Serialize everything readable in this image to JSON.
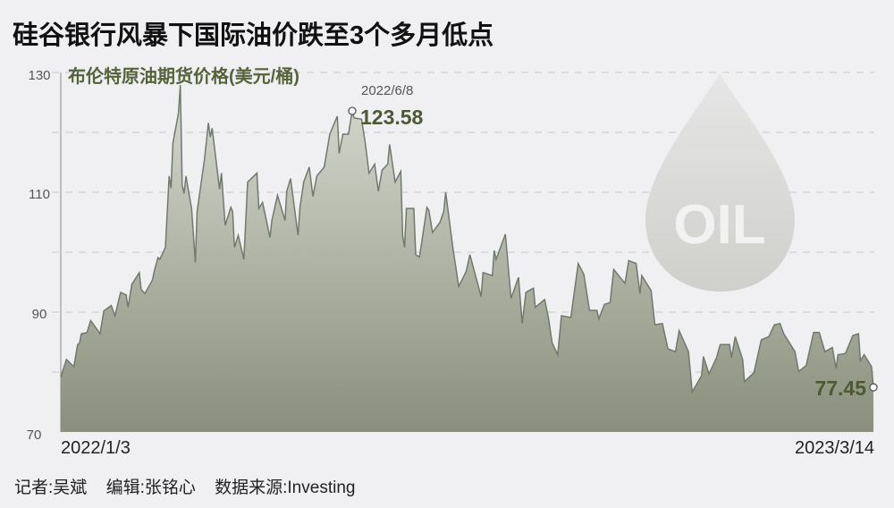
{
  "title": "硅谷银行风暴下国际油价跌至3个多月低点",
  "footer": {
    "reporter": "记者:吴斌",
    "editor": "编辑:张铭心",
    "source": "数据来源:Investing"
  },
  "watermark_text": "OIL",
  "colors": {
    "line": "#707a6c",
    "fill_top": "#d6d8ce",
    "fill_bottom": "#848a76",
    "label": "#4b5a33",
    "grid": "#c8c8cc",
    "background": "#f0f0f2"
  },
  "chart_data": {
    "type": "area",
    "title": "布伦特原油期货价格(美元/桶)",
    "ylim": [
      70,
      130
    ],
    "yticks": [
      "130",
      "110",
      "90",
      "70"
    ],
    "grid_values": [
      80,
      90,
      100,
      110,
      120,
      130
    ],
    "grid": "dashed horizontal",
    "xtick_labels": [
      "2022/1/3",
      "2023/3/14"
    ],
    "annotations": [
      {
        "date": "2022-06-08",
        "date_label": "2022/6/8",
        "value": 123.58,
        "label": "123.58"
      },
      {
        "date": "2023-03-14",
        "value": 77.45,
        "label": "77.45"
      }
    ],
    "points": [
      [
        "2022-01-03",
        79.2
      ],
      [
        "2022-01-06",
        82.1
      ],
      [
        "2022-01-10",
        80.9
      ],
      [
        "2022-01-12",
        84.6
      ],
      [
        "2022-01-13",
        84.8
      ],
      [
        "2022-01-14",
        86.4
      ],
      [
        "2022-01-17",
        86.6
      ],
      [
        "2022-01-19",
        88.6
      ],
      [
        "2022-01-24",
        86.4
      ],
      [
        "2022-01-26",
        90.2
      ],
      [
        "2022-01-30",
        91.1
      ],
      [
        "2022-02-01",
        89.4
      ],
      [
        "2022-02-04",
        93.3
      ],
      [
        "2022-02-07",
        92.9
      ],
      [
        "2022-02-08",
        90.8
      ],
      [
        "2022-02-10",
        94.6
      ],
      [
        "2022-02-14",
        96.6
      ],
      [
        "2022-02-15",
        93.8
      ],
      [
        "2022-02-17",
        93.1
      ],
      [
        "2022-02-21",
        95.3
      ],
      [
        "2022-02-22",
        96.8
      ],
      [
        "2022-02-24",
        99.1
      ],
      [
        "2022-02-25",
        98.8
      ],
      [
        "2022-02-28",
        100.8
      ],
      [
        "2022-03-02",
        112.7
      ],
      [
        "2022-03-03",
        110.7
      ],
      [
        "2022-03-04",
        118.2
      ],
      [
        "2022-03-07",
        123.2
      ],
      [
        "2022-03-08",
        127.9
      ],
      [
        "2022-03-09",
        111.2
      ],
      [
        "2022-03-10",
        109.8
      ],
      [
        "2022-03-11",
        112.7
      ],
      [
        "2022-03-14",
        107.3
      ],
      [
        "2022-03-16",
        98.3
      ],
      [
        "2022-03-17",
        106.8
      ],
      [
        "2022-03-21",
        115.7
      ],
      [
        "2022-03-23",
        121.6
      ],
      [
        "2022-03-24",
        119.2
      ],
      [
        "2022-03-25",
        120.7
      ],
      [
        "2022-03-29",
        110.5
      ],
      [
        "2022-03-30",
        113.2
      ],
      [
        "2022-04-01",
        104.5
      ],
      [
        "2022-04-04",
        107.5
      ],
      [
        "2022-04-05",
        106.8
      ],
      [
        "2022-04-06",
        100.8
      ],
      [
        "2022-04-08",
        102.8
      ],
      [
        "2022-04-11",
        98.8
      ],
      [
        "2022-04-13",
        111.7
      ],
      [
        "2022-04-18",
        113.2
      ],
      [
        "2022-04-19",
        107.3
      ],
      [
        "2022-04-21",
        108.3
      ],
      [
        "2022-04-25",
        102.5
      ],
      [
        "2022-04-26",
        105.3
      ],
      [
        "2022-04-29",
        109.5
      ],
      [
        "2022-05-03",
        105.3
      ],
      [
        "2022-05-04",
        110.2
      ],
      [
        "2022-05-06",
        112.3
      ],
      [
        "2022-05-10",
        102.8
      ],
      [
        "2022-05-11",
        107.5
      ],
      [
        "2022-05-13",
        111.7
      ],
      [
        "2022-05-16",
        114.2
      ],
      [
        "2022-05-18",
        109.3
      ],
      [
        "2022-05-20",
        112.7
      ],
      [
        "2022-05-24",
        114.2
      ],
      [
        "2022-05-27",
        119.7
      ],
      [
        "2022-05-31",
        122.7
      ],
      [
        "2022-06-01",
        116.5
      ],
      [
        "2022-06-03",
        119.7
      ],
      [
        "2022-06-06",
        119.7
      ],
      [
        "2022-06-08",
        123.58
      ],
      [
        "2022-06-09",
        122.4
      ],
      [
        "2022-06-13",
        122.2
      ],
      [
        "2022-06-15",
        118.2
      ],
      [
        "2022-06-17",
        113.2
      ],
      [
        "2022-06-20",
        114.7
      ],
      [
        "2022-06-22",
        110.2
      ],
      [
        "2022-06-24",
        113.7
      ],
      [
        "2022-06-27",
        114.7
      ],
      [
        "2022-06-28",
        118.0
      ],
      [
        "2022-07-01",
        111.7
      ],
      [
        "2022-07-04",
        113.5
      ],
      [
        "2022-07-05",
        102.8
      ],
      [
        "2022-07-06",
        100.8
      ],
      [
        "2022-07-07",
        107.3
      ],
      [
        "2022-07-11",
        107.3
      ],
      [
        "2022-07-12",
        99.6
      ],
      [
        "2022-07-14",
        99.2
      ],
      [
        "2022-07-18",
        107.5
      ],
      [
        "2022-07-19",
        107.0
      ],
      [
        "2022-07-21",
        103.3
      ],
      [
        "2022-07-25",
        105.0
      ],
      [
        "2022-07-27",
        106.8
      ],
      [
        "2022-07-28",
        110.0
      ],
      [
        "2022-08-01",
        100.5
      ],
      [
        "2022-08-04",
        94.3
      ],
      [
        "2022-08-08",
        96.8
      ],
      [
        "2022-08-10",
        99.6
      ],
      [
        "2022-08-16",
        92.6
      ],
      [
        "2022-08-17",
        96.6
      ],
      [
        "2022-08-22",
        96.1
      ],
      [
        "2022-08-23",
        100.3
      ],
      [
        "2022-08-24",
        98.8
      ],
      [
        "2022-08-29",
        103.0
      ],
      [
        "2022-09-01",
        92.3
      ],
      [
        "2022-09-05",
        95.8
      ],
      [
        "2022-09-07",
        88.1
      ],
      [
        "2022-09-09",
        93.3
      ],
      [
        "2022-09-13",
        94.0
      ],
      [
        "2022-09-14",
        90.8
      ],
      [
        "2022-09-19",
        92.1
      ],
      [
        "2022-09-21",
        89.1
      ],
      [
        "2022-09-23",
        84.9
      ],
      [
        "2022-09-26",
        82.9
      ],
      [
        "2022-09-28",
        89.4
      ],
      [
        "2022-10-03",
        89.1
      ],
      [
        "2022-10-07",
        98.1
      ],
      [
        "2022-10-10",
        96.3
      ],
      [
        "2022-10-13",
        90.3
      ],
      [
        "2022-10-17",
        90.3
      ],
      [
        "2022-10-18",
        88.9
      ],
      [
        "2022-10-21",
        91.3
      ],
      [
        "2022-10-24",
        91.6
      ],
      [
        "2022-10-26",
        97.1
      ],
      [
        "2022-11-01",
        94.8
      ],
      [
        "2022-11-03",
        98.6
      ],
      [
        "2022-11-07",
        98.1
      ],
      [
        "2022-11-09",
        93.1
      ],
      [
        "2022-11-10",
        96.1
      ],
      [
        "2022-11-15",
        93.6
      ],
      [
        "2022-11-17",
        87.9
      ],
      [
        "2022-11-21",
        88.1
      ],
      [
        "2022-11-24",
        83.9
      ],
      [
        "2022-11-28",
        83.4
      ],
      [
        "2022-11-30",
        86.9
      ],
      [
        "2022-12-05",
        83.4
      ],
      [
        "2022-12-07",
        76.7
      ],
      [
        "2022-12-12",
        79.4
      ],
      [
        "2022-12-13",
        82.6
      ],
      [
        "2022-12-16",
        79.7
      ],
      [
        "2022-12-20",
        82.4
      ],
      [
        "2022-12-22",
        84.6
      ],
      [
        "2022-12-27",
        84.6
      ],
      [
        "2022-12-28",
        82.4
      ],
      [
        "2022-12-30",
        85.9
      ],
      [
        "2023-01-03",
        82.1
      ],
      [
        "2023-01-04",
        78.4
      ],
      [
        "2023-01-09",
        79.9
      ],
      [
        "2023-01-13",
        85.4
      ],
      [
        "2023-01-17",
        85.9
      ],
      [
        "2023-01-20",
        87.9
      ],
      [
        "2023-01-23",
        88.1
      ],
      [
        "2023-01-25",
        86.4
      ],
      [
        "2023-01-31",
        83.4
      ],
      [
        "2023-02-02",
        80.1
      ],
      [
        "2023-02-06",
        81.1
      ],
      [
        "2023-02-10",
        86.6
      ],
      [
        "2023-02-13",
        86.6
      ],
      [
        "2023-02-16",
        83.4
      ],
      [
        "2023-02-20",
        84.1
      ],
      [
        "2023-02-22",
        80.6
      ],
      [
        "2023-02-23",
        82.9
      ],
      [
        "2023-02-27",
        83.1
      ],
      [
        "2023-03-03",
        86.1
      ],
      [
        "2023-03-06",
        86.4
      ],
      [
        "2023-03-07",
        81.9
      ],
      [
        "2023-03-09",
        82.9
      ],
      [
        "2023-03-13",
        80.9
      ],
      [
        "2023-03-14",
        77.45
      ]
    ]
  }
}
